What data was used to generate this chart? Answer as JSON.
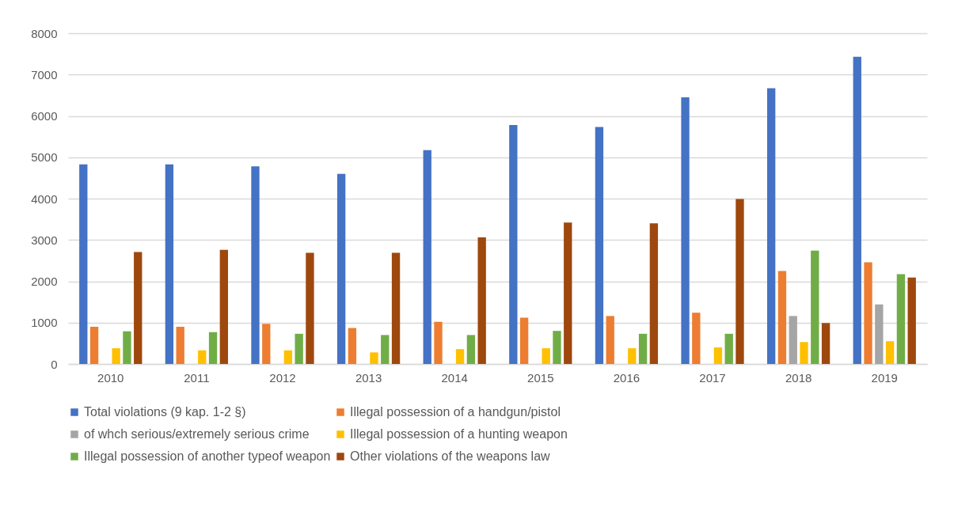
{
  "chart_data": {
    "type": "bar",
    "categories": [
      "2010",
      "2011",
      "2012",
      "2013",
      "2014",
      "2015",
      "2016",
      "2017",
      "2018",
      "2019"
    ],
    "series": [
      {
        "name": "Total violations (9 kap. 1-2 §)",
        "color": "#4472c4",
        "values": [
          4830,
          4830,
          4780,
          4600,
          5170,
          5780,
          5730,
          6450,
          6670,
          7430
        ]
      },
      {
        "name": "Illegal possession of a handgun/pistol",
        "color": "#ed7d31",
        "values": [
          900,
          900,
          970,
          870,
          1020,
          1120,
          1160,
          1240,
          2250,
          2460
        ]
      },
      {
        "name": "of whch serious/extremely serious crime",
        "color": "#a5a5a5",
        "values": [
          null,
          null,
          null,
          null,
          null,
          null,
          null,
          null,
          1160,
          1440
        ]
      },
      {
        "name": "Illegal possession of a hunting weapon",
        "color": "#ffc000",
        "values": [
          380,
          330,
          330,
          280,
          360,
          380,
          380,
          400,
          530,
          550
        ]
      },
      {
        "name": "Illegal possession of another typeof weapon",
        "color": "#70ad47",
        "values": [
          790,
          770,
          730,
          700,
          700,
          800,
          730,
          730,
          2740,
          2170
        ]
      },
      {
        "name": "Other violations of the weapons law",
        "color": "#9e480e",
        "values": [
          2710,
          2760,
          2690,
          2690,
          3060,
          3420,
          3400,
          3990,
          990,
          2090
        ]
      }
    ],
    "ylim": [
      0,
      8000
    ],
    "yticks": [
      0,
      1000,
      2000,
      3000,
      4000,
      5000,
      6000,
      7000,
      8000
    ],
    "grid": "y",
    "legend": "bottom"
  }
}
